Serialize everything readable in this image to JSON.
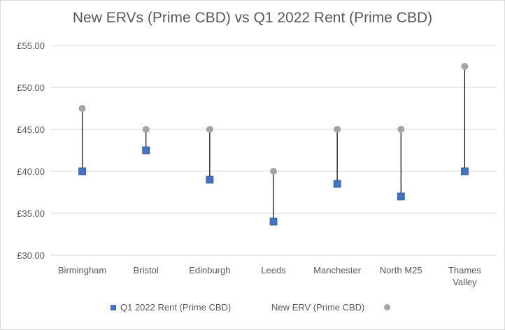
{
  "chart_data": {
    "type": "scatter",
    "title": "New ERVs (Prime CBD) vs Q1 2022 Rent (Prime CBD)",
    "categories": [
      "Birmingham",
      "Bristol",
      "Edinburgh",
      "Leeds",
      "Manchester",
      "North M25",
      "Thames Valley"
    ],
    "series": [
      {
        "name": "Q1 2022 Rent (Prime CBD)",
        "values": [
          40.0,
          42.5,
          39.0,
          34.0,
          38.5,
          37.0,
          40.0
        ],
        "color": "#4472c4",
        "marker": "square"
      },
      {
        "name": "New ERV (Prime CBD)",
        "values": [
          47.5,
          45.0,
          45.0,
          40.0,
          45.0,
          45.0,
          52.5
        ],
        "color": "#a5a5a5",
        "marker": "circle"
      }
    ],
    "y_ticks": [
      "£30.00",
      "£35.00",
      "£40.00",
      "£45.00",
      "£50.00",
      "£55.00"
    ],
    "ylim": [
      30,
      55
    ],
    "grid": true,
    "legend_position": "bottom",
    "connector_color": "#000000"
  }
}
